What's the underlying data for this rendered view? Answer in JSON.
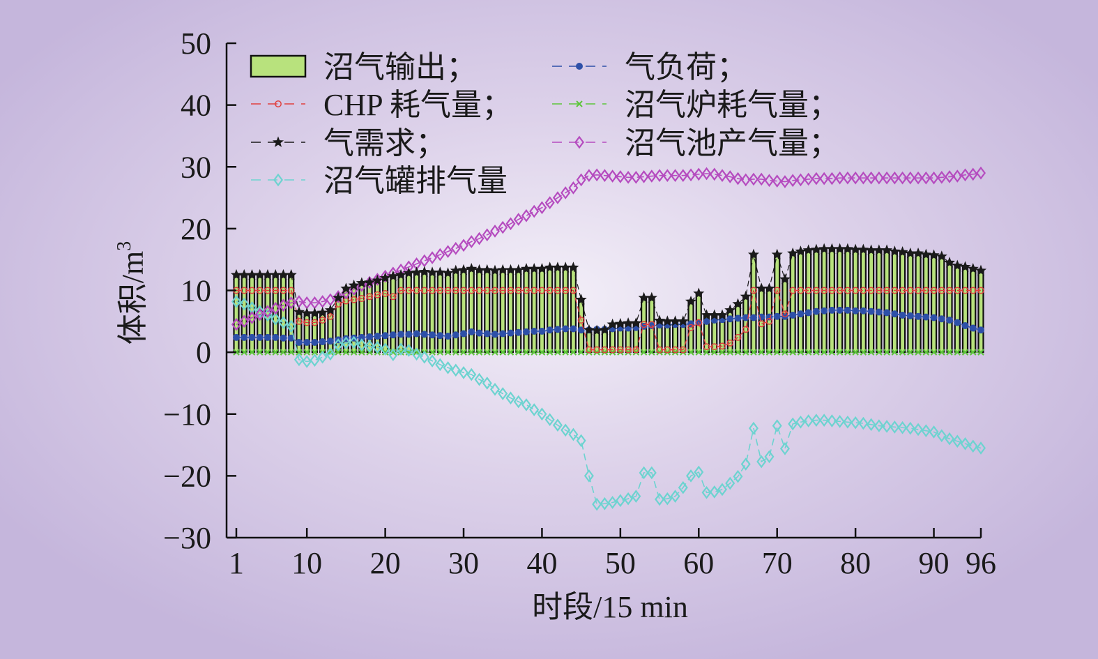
{
  "chart_data": {
    "type": "bar+line",
    "xlabel": "时段/15 min",
    "ylabel": "体积/m",
    "ylabel_sup": "3",
    "ylim": [
      -30,
      50
    ],
    "yticks": [
      50,
      40,
      30,
      20,
      10,
      0,
      -10,
      -20,
      -30
    ],
    "xlim": [
      1,
      96
    ],
    "xticks": [
      1,
      10,
      20,
      30,
      40,
      50,
      60,
      70,
      80,
      90,
      96
    ],
    "legend_position": "top-left (inside, two columns)",
    "colors": {
      "bar_fill": "#b8e27d",
      "bar_edge": "#111111",
      "chp": "#e0403f",
      "demand": "#1a1a1a",
      "tank": "#6dd3d0",
      "load": "#2e50a8",
      "boiler": "#5cc63a",
      "digester": "#b54bbf"
    },
    "series": [
      {
        "key": "output",
        "name": "沼气输出；",
        "kind": "bar",
        "values": [
          12.5,
          12.5,
          12.5,
          12.5,
          12.5,
          12.5,
          12.5,
          12.5,
          6.5,
          6.3,
          6.3,
          6.4,
          6.8,
          8.8,
          10.3,
          10.8,
          11.2,
          11.3,
          11.6,
          12.0,
          12.3,
          12.5,
          12.8,
          12.9,
          13.0,
          12.9,
          12.9,
          12.8,
          13.2,
          13.3,
          13.5,
          13.3,
          13.3,
          13.2,
          13.3,
          13.3,
          13.3,
          13.5,
          13.5,
          13.5,
          13.7,
          13.7,
          13.7,
          13.7,
          8.5,
          3.6,
          3.5,
          3.6,
          4.5,
          4.6,
          4.7,
          4.7,
          8.8,
          8.8,
          5.1,
          5.0,
          5.0,
          5.0,
          8.2,
          9.5,
          6.0,
          6.0,
          6.0,
          6.8,
          7.8,
          9.0,
          15.8,
          10.3,
          10.3,
          15.8,
          11.8,
          16.0,
          16.3,
          16.5,
          16.6,
          16.7,
          16.7,
          16.7,
          16.7,
          16.6,
          16.6,
          16.5,
          16.5,
          16.5,
          16.3,
          16.2,
          16.0,
          16.0,
          15.8,
          15.7,
          15.5,
          14.5,
          14.0,
          13.8,
          13.5,
          13.2
        ]
      },
      {
        "key": "chp",
        "name": "CHP 耗气量；",
        "kind": "line",
        "values": [
          10.0,
          10.0,
          10.0,
          10.0,
          10.0,
          10.0,
          10.0,
          10.0,
          5.0,
          4.8,
          4.8,
          5.2,
          5.8,
          7.8,
          8.3,
          8.5,
          8.7,
          9.0,
          9.3,
          9.5,
          9.0,
          10.0,
          10.0,
          10.0,
          10.0,
          10.0,
          10.0,
          10.0,
          10.0,
          10.0,
          10.0,
          10.0,
          10.0,
          10.0,
          10.0,
          10.0,
          10.0,
          10.0,
          10.0,
          10.0,
          10.0,
          10.0,
          10.0,
          10.0,
          5.2,
          0.4,
          0.4,
          0.4,
          0.4,
          0.4,
          0.4,
          0.4,
          4.5,
          4.5,
          0.4,
          0.4,
          0.4,
          0.4,
          4.0,
          4.8,
          0.9,
          0.9,
          1.0,
          1.5,
          2.4,
          3.7,
          10.0,
          4.6,
          5.0,
          10.0,
          6.2,
          10.0,
          10.0,
          10.0,
          10.0,
          10.0,
          10.0,
          10.0,
          10.0,
          10.0,
          10.0,
          10.0,
          10.0,
          10.0,
          10.0,
          10.0,
          10.0,
          10.0,
          10.0,
          10.0,
          10.0,
          10.0,
          10.0,
          10.0,
          10.0,
          10.0
        ]
      },
      {
        "key": "demand",
        "name": "气需求；",
        "kind": "line",
        "values": [
          12.5,
          12.5,
          12.5,
          12.5,
          12.5,
          12.5,
          12.5,
          12.5,
          6.5,
          6.3,
          6.3,
          6.4,
          6.8,
          8.8,
          10.3,
          10.8,
          11.2,
          11.3,
          11.6,
          12.0,
          12.3,
          12.5,
          12.8,
          12.9,
          13.0,
          12.9,
          12.9,
          12.8,
          13.2,
          13.3,
          13.5,
          13.3,
          13.3,
          13.2,
          13.3,
          13.3,
          13.3,
          13.5,
          13.5,
          13.5,
          13.7,
          13.7,
          13.7,
          13.7,
          8.5,
          3.6,
          3.5,
          3.6,
          4.5,
          4.6,
          4.7,
          4.7,
          8.8,
          8.8,
          5.1,
          5.0,
          5.0,
          5.0,
          8.2,
          9.5,
          6.0,
          6.0,
          6.0,
          6.8,
          7.8,
          9.0,
          15.8,
          10.3,
          10.3,
          15.8,
          11.8,
          16.0,
          16.3,
          16.5,
          16.6,
          16.7,
          16.7,
          16.7,
          16.7,
          16.6,
          16.6,
          16.5,
          16.5,
          16.5,
          16.3,
          16.2,
          16.0,
          16.0,
          15.8,
          15.7,
          15.5,
          14.5,
          14.0,
          13.8,
          13.5,
          13.2
        ]
      },
      {
        "key": "tank",
        "name": "沼气罐排气量",
        "kind": "line",
        "values": [
          8.2,
          7.8,
          7.2,
          6.6,
          6.0,
          5.4,
          4.8,
          4.2,
          -1.2,
          -1.5,
          -1.3,
          -0.8,
          -0.3,
          1.2,
          1.5,
          1.6,
          1.2,
          1.0,
          0.8,
          0.5,
          -0.4,
          0.5,
          0.3,
          -0.3,
          -0.8,
          -1.4,
          -2.0,
          -2.5,
          -2.9,
          -3.3,
          -3.6,
          -4.4,
          -5.0,
          -6.0,
          -6.7,
          -7.4,
          -8.0,
          -8.5,
          -9.3,
          -10.0,
          -10.9,
          -11.8,
          -12.6,
          -13.3,
          -14.3,
          -20.0,
          -24.6,
          -24.5,
          -24.3,
          -24.0,
          -23.7,
          -23.3,
          -19.5,
          -19.5,
          -23.8,
          -23.7,
          -23.3,
          -21.9,
          -20.0,
          -19.4,
          -22.7,
          -22.6,
          -22.2,
          -21.2,
          -20.1,
          -18.1,
          -12.3,
          -17.7,
          -16.9,
          -11.9,
          -15.6,
          -11.6,
          -11.3,
          -11.1,
          -11.0,
          -11.0,
          -11.1,
          -11.2,
          -11.3,
          -11.4,
          -11.5,
          -11.7,
          -11.9,
          -12.0,
          -12.1,
          -12.2,
          -12.3,
          -12.5,
          -12.7,
          -12.9,
          -13.5,
          -14.0,
          -14.4,
          -14.8,
          -15.2,
          -15.5
        ]
      },
      {
        "key": "load",
        "name": "气负荷；",
        "kind": "line",
        "values": [
          2.4,
          2.4,
          2.4,
          2.4,
          2.4,
          2.4,
          2.3,
          2.3,
          1.6,
          1.6,
          1.6,
          1.7,
          1.8,
          2.0,
          2.2,
          2.3,
          2.4,
          2.5,
          2.6,
          2.7,
          2.8,
          2.9,
          2.9,
          3.0,
          2.9,
          2.8,
          2.7,
          2.6,
          2.8,
          3.0,
          3.3,
          3.1,
          3.0,
          2.9,
          3.0,
          3.1,
          3.2,
          3.3,
          3.4,
          3.4,
          3.6,
          3.7,
          3.8,
          3.8,
          3.6,
          3.6,
          3.7,
          3.7,
          3.8,
          3.9,
          3.9,
          4.0,
          4.2,
          4.3,
          4.4,
          4.4,
          4.5,
          4.5,
          4.6,
          4.8,
          5.0,
          5.2,
          5.3,
          5.4,
          5.5,
          5.6,
          5.6,
          5.7,
          5.7,
          5.8,
          5.8,
          6.0,
          6.2,
          6.4,
          6.6,
          6.7,
          6.8,
          6.8,
          6.8,
          6.7,
          6.7,
          6.6,
          6.5,
          6.4,
          6.2,
          6.0,
          5.9,
          5.8,
          5.7,
          5.6,
          5.4,
          5.2,
          4.8,
          4.3,
          3.9,
          3.6
        ]
      },
      {
        "key": "boiler",
        "name": "沼气炉耗气量；",
        "kind": "line",
        "values": [
          0.0,
          0.0,
          0.0,
          0.0,
          0.0,
          0.0,
          0.0,
          0.0,
          0.0,
          0.0,
          0.0,
          0.0,
          0.0,
          0.0,
          0.0,
          0.0,
          0.0,
          0.0,
          0.0,
          0.0,
          0.0,
          0.0,
          0.0,
          0.0,
          0.0,
          0.0,
          0.0,
          0.0,
          0.0,
          0.0,
          0.0,
          0.0,
          0.0,
          0.0,
          0.0,
          0.0,
          0.0,
          0.0,
          0.0,
          0.0,
          0.0,
          0.0,
          0.0,
          0.0,
          0.0,
          0.0,
          0.0,
          0.0,
          0.0,
          0.0,
          0.0,
          0.0,
          0.0,
          0.0,
          0.0,
          0.0,
          0.0,
          0.0,
          0.0,
          0.0,
          0.0,
          0.0,
          0.0,
          0.0,
          0.0,
          0.0,
          0.0,
          0.0,
          0.0,
          0.0,
          0.0,
          0.0,
          0.0,
          0.0,
          0.0,
          0.0,
          0.0,
          0.0,
          0.0,
          0.0,
          0.0,
          0.0,
          0.0,
          0.0,
          0.0,
          0.0,
          0.0,
          0.0,
          0.0,
          0.0,
          0.0,
          0.0,
          0.0,
          0.0,
          0.0,
          0.0
        ]
      },
      {
        "key": "digester",
        "name": "沼气池产气量；",
        "kind": "line",
        "values": [
          4.5,
          5.0,
          5.6,
          6.1,
          6.6,
          7.1,
          7.6,
          8.0,
          8.2,
          8.0,
          8.0,
          8.2,
          8.5,
          9.0,
          9.6,
          10.2,
          10.8,
          11.3,
          11.8,
          12.3,
          12.8,
          13.3,
          13.8,
          14.3,
          14.8,
          15.3,
          15.8,
          16.3,
          16.8,
          17.3,
          17.9,
          18.4,
          19.0,
          19.6,
          20.2,
          20.8,
          21.5,
          22.1,
          22.8,
          23.4,
          24.2,
          25.0,
          25.8,
          26.6,
          27.9,
          28.6,
          28.7,
          28.6,
          28.5,
          28.4,
          28.3,
          28.3,
          28.4,
          28.5,
          28.6,
          28.6,
          28.6,
          28.6,
          28.7,
          28.8,
          28.9,
          28.8,
          28.6,
          28.4,
          28.1,
          27.9,
          28.0,
          28.0,
          27.8,
          27.7,
          27.6,
          27.8,
          27.9,
          28.0,
          28.1,
          28.1,
          28.1,
          28.2,
          28.2,
          28.2,
          28.2,
          28.2,
          28.2,
          28.2,
          28.2,
          28.2,
          28.2,
          28.2,
          28.2,
          28.2,
          28.3,
          28.4,
          28.5,
          28.7,
          28.8,
          29.0
        ]
      }
    ]
  }
}
